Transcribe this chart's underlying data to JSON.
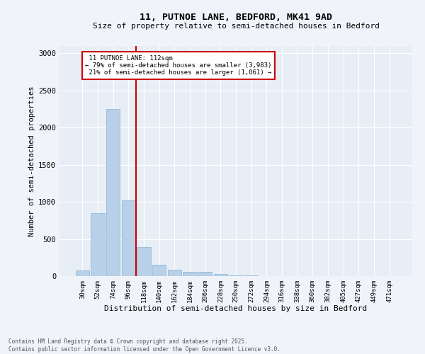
{
  "title": "11, PUTNOE LANE, BEDFORD, MK41 9AD",
  "subtitle": "Size of property relative to semi-detached houses in Bedford",
  "xlabel": "Distribution of semi-detached houses by size in Bedford",
  "ylabel": "Number of semi-detached properties",
  "property_label": "11 PUTNOE LANE: 112sqm",
  "pct_smaller": 79,
  "pct_larger": 21,
  "n_smaller": 3983,
  "n_larger": 1061,
  "bar_labels": [
    "30sqm",
    "52sqm",
    "74sqm",
    "96sqm",
    "118sqm",
    "140sqm",
    "162sqm",
    "184sqm",
    "206sqm",
    "228sqm",
    "250sqm",
    "272sqm",
    "294sqm",
    "316sqm",
    "338sqm",
    "360sqm",
    "382sqm",
    "405sqm",
    "427sqm",
    "449sqm",
    "471sqm"
  ],
  "bar_values": [
    80,
    850,
    2250,
    1020,
    390,
    155,
    90,
    60,
    55,
    25,
    10,
    5,
    3,
    2,
    2,
    1,
    1,
    1,
    1,
    0,
    0
  ],
  "bar_color": "#b8d0e8",
  "bar_edge_color": "#8ab4d0",
  "vline_color": "#cc0000",
  "annotation_box_color": "#cc0000",
  "background_color": "#f0f4fa",
  "plot_background": "#e8eef6",
  "grid_color": "#ffffff",
  "footnote": "Contains HM Land Registry data © Crown copyright and database right 2025.\nContains public sector information licensed under the Open Government Licence v3.0.",
  "ylim": [
    0,
    3100
  ],
  "yticks": [
    0,
    500,
    1000,
    1500,
    2000,
    2500,
    3000
  ]
}
